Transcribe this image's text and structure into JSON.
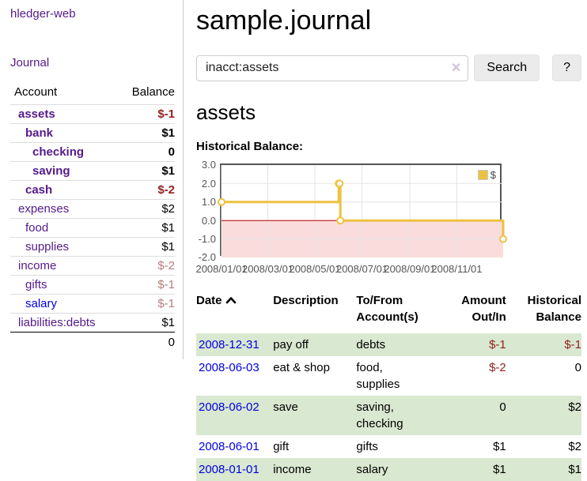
{
  "app": {
    "title": "hledger-web"
  },
  "sidebar": {
    "nav": {
      "journal": "Journal"
    },
    "table_headers": {
      "account": "Account",
      "balance": "Balance"
    },
    "accounts": [
      {
        "name": "assets",
        "balance": "$-1",
        "depth": 1,
        "bold": true,
        "negative": "strong"
      },
      {
        "name": "bank",
        "balance": "$1",
        "depth": 2,
        "bold": true,
        "negative": "none"
      },
      {
        "name": "checking",
        "balance": "0",
        "depth": 3,
        "bold": true,
        "negative": "none"
      },
      {
        "name": "saving",
        "balance": "$1",
        "depth": 3,
        "bold": true,
        "negative": "none"
      },
      {
        "name": "cash",
        "balance": "$-2",
        "depth": 2,
        "bold": true,
        "negative": "strong"
      },
      {
        "name": "expenses",
        "balance": "$2",
        "depth": 1,
        "bold": false,
        "negative": "none"
      },
      {
        "name": "food",
        "balance": "$1",
        "depth": 2,
        "bold": false,
        "negative": "none"
      },
      {
        "name": "supplies",
        "balance": "$1",
        "depth": 2,
        "bold": false,
        "negative": "none"
      },
      {
        "name": "income",
        "balance": "$-2",
        "depth": 1,
        "bold": false,
        "negative": "soft"
      },
      {
        "name": "gifts",
        "balance": "$-1",
        "depth": 2,
        "bold": false,
        "negative": "soft"
      },
      {
        "name": "salary",
        "balance": "$-1",
        "depth": 2,
        "bold": false,
        "negative": "soft"
      },
      {
        "name": "liabilities:debts",
        "balance": "$1",
        "depth": 1,
        "bold": false,
        "negative": "none"
      }
    ],
    "total": "0"
  },
  "main": {
    "title": "sample.journal",
    "search": {
      "value": "inacct:assets",
      "clear_icon": "×",
      "button": "Search",
      "help_button": "?"
    },
    "account_heading": "assets",
    "chart_label": "Historical Balance:"
  },
  "chart_data": {
    "type": "line",
    "steps": true,
    "title": "Historical Balance",
    "xlim": [
      "2008-01-01",
      "2008-12-31"
    ],
    "ylim": [
      -2.0,
      3.0
    ],
    "x_ticks": [
      "2008/01/01",
      "2008/03/01",
      "2008/05/01",
      "2008/07/01",
      "2008/09/01",
      "2008/11/01"
    ],
    "y_ticks": [
      3.0,
      2.0,
      1.0,
      0.0,
      -1.0,
      -2.0
    ],
    "series": [
      {
        "name": "$",
        "color": "#edc240",
        "points": [
          [
            "2008-01-01",
            1
          ],
          [
            "2008-06-01",
            2
          ],
          [
            "2008-06-02",
            2
          ],
          [
            "2008-06-03",
            0
          ],
          [
            "2008-12-31",
            -1
          ]
        ]
      }
    ],
    "legend": "$",
    "legend_position": "top-right",
    "grid": true,
    "grid_color": "#e4e4e4",
    "negative_fill": "#fbdcdc",
    "zero_line_color": "#b30000",
    "border_color": "#545454"
  },
  "register": {
    "headers": [
      "Date",
      "Description",
      "To/From\nAccount(s)",
      "Amount\nOut/In",
      "Historical\nBalance"
    ],
    "rows": [
      {
        "date": "2008-12-31",
        "description": "pay off",
        "accounts": "debts",
        "amount": "$-1",
        "balance": "$-1"
      },
      {
        "date": "2008-06-03",
        "description": "eat & shop",
        "accounts": "food, supplies",
        "amount": "$-2",
        "balance": "0"
      },
      {
        "date": "2008-06-02",
        "description": "save",
        "accounts": "saving,\nchecking",
        "amount": "0",
        "balance": "$2"
      },
      {
        "date": "2008-06-01",
        "description": "gift",
        "accounts": "gifts",
        "amount": "$1",
        "balance": "$2"
      },
      {
        "date": "2008-01-01",
        "description": "income",
        "accounts": "salary",
        "amount": "$1",
        "balance": "$1"
      }
    ]
  },
  "colors": {
    "link_visited": "#551a8b",
    "link": "#0000e0",
    "negative_strong": "#941f1f",
    "negative_soft": "#b87c7c",
    "row_green": "#d9e8d0",
    "chart_series": "#edc240"
  }
}
